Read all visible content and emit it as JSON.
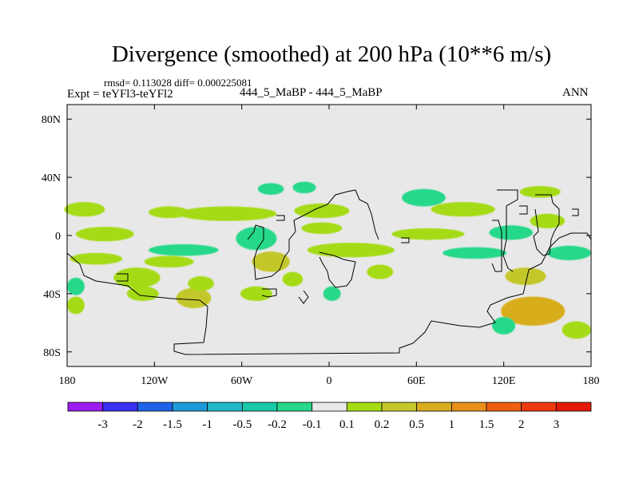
{
  "figure": {
    "title": "Divergence (smoothed) at 200 hPa (10**6 m/s)",
    "stats": "rmsd= 0.113028 diff= 0.000225081",
    "expt": "Expt = teYFl3-teYFl2",
    "runs": "444_5_MaBP - 444_5_MaBP",
    "season": "ANN"
  },
  "chart_data": {
    "type": "heatmap",
    "title": "Divergence (smoothed) at 200 hPa (10**6 m/s)",
    "xlabel": "",
    "ylabel": "",
    "xlim": [
      -180,
      180
    ],
    "ylim": [
      -90,
      90
    ],
    "grid": false,
    "x_ticks": [
      {
        "value": -180,
        "label": "180"
      },
      {
        "value": -120,
        "label": "120W"
      },
      {
        "value": -60,
        "label": "60W"
      },
      {
        "value": 0,
        "label": "0"
      },
      {
        "value": 60,
        "label": "60E"
      },
      {
        "value": 120,
        "label": "120E"
      },
      {
        "value": 180,
        "label": "180"
      }
    ],
    "y_ticks": [
      {
        "value": 80,
        "label": "80N"
      },
      {
        "value": 40,
        "label": "40N"
      },
      {
        "value": 0,
        "label": "0"
      },
      {
        "value": -40,
        "label": "40S"
      },
      {
        "value": -80,
        "label": "80S"
      }
    ],
    "colorbar": {
      "labels": [
        "-3",
        "-2",
        "-1.5",
        "-1",
        "-0.5",
        "-0.2",
        "-0.1",
        "0.1",
        "0.2",
        "0.5",
        "1",
        "1.5",
        "2",
        "3"
      ],
      "colors": [
        "#9b1df0",
        "#3a2ff0",
        "#1f63e8",
        "#1f9ad8",
        "#22b8c8",
        "#19c9a8",
        "#27d88a",
        "#e8e8e8",
        "#a5db12",
        "#c4c72a",
        "#d8ad1e",
        "#e8901a",
        "#ee5f12",
        "#ec3a0e",
        "#e41a08"
      ]
    },
    "anomaly_regions": [
      {
        "lon": -168,
        "lat": 18,
        "rlon": 14,
        "rlat": 5,
        "level": "0.1 to 0.2"
      },
      {
        "lon": -154,
        "lat": 1,
        "rlon": 20,
        "rlat": 5,
        "level": "0.1 to 0.2"
      },
      {
        "lon": -160,
        "lat": -16,
        "rlon": 18,
        "rlat": 4,
        "level": "0.1 to 0.2"
      },
      {
        "lon": -132,
        "lat": -29,
        "rlon": 16,
        "rlat": 7,
        "level": "0.1 to 0.2"
      },
      {
        "lon": -174,
        "lat": -35,
        "rlon": 6,
        "rlat": 6,
        "level": "-0.2 to -0.1"
      },
      {
        "lon": -174,
        "lat": -48,
        "rlon": 6,
        "rlat": 6,
        "level": "0.1 to 0.2"
      },
      {
        "lon": -128,
        "lat": -40,
        "rlon": 11,
        "rlat": 5,
        "level": "0.1 to 0.2"
      },
      {
        "lon": -110,
        "lat": 16,
        "rlon": 14,
        "rlat": 4,
        "level": "0.1 to 0.2"
      },
      {
        "lon": -100,
        "lat": -10,
        "rlon": 24,
        "rlat": 4,
        "level": "-0.2 to -0.1"
      },
      {
        "lon": -110,
        "lat": -18,
        "rlon": 17,
        "rlat": 4,
        "level": "0.1 to 0.2"
      },
      {
        "lon": -93,
        "lat": -43,
        "rlon": 12,
        "rlat": 7,
        "level": "0.2 to 0.5"
      },
      {
        "lon": -88,
        "lat": -33,
        "rlon": 9,
        "rlat": 5,
        "level": "0.1 to 0.2"
      },
      {
        "lon": -70,
        "lat": 15,
        "rlon": 34,
        "rlat": 5,
        "level": "0.1 to 0.2"
      },
      {
        "lon": -50,
        "lat": -2,
        "rlon": 14,
        "rlat": 8,
        "level": "-0.2 to -0.1"
      },
      {
        "lon": -40,
        "lat": -18,
        "rlon": 13,
        "rlat": 7,
        "level": "0.2 to 0.5"
      },
      {
        "lon": -40,
        "lat": 32,
        "rlon": 9,
        "rlat": 4,
        "level": "-0.2 to -0.1"
      },
      {
        "lon": -17,
        "lat": 33,
        "rlon": 8,
        "rlat": 4,
        "level": "-0.2 to -0.1"
      },
      {
        "lon": -5,
        "lat": 17,
        "rlon": 19,
        "rlat": 5,
        "level": "0.1 to 0.2"
      },
      {
        "lon": -5,
        "lat": 5,
        "rlon": 14,
        "rlat": 4,
        "level": "0.1 to 0.2"
      },
      {
        "lon": 15,
        "lat": -10,
        "rlon": 30,
        "rlat": 5,
        "level": "0.1 to 0.2"
      },
      {
        "lon": -25,
        "lat": -30,
        "rlon": 7,
        "rlat": 5,
        "level": "0.1 to 0.2"
      },
      {
        "lon": -50,
        "lat": -40,
        "rlon": 11,
        "rlat": 5,
        "level": "0.1 to 0.2"
      },
      {
        "lon": 2,
        "lat": -40,
        "rlon": 6,
        "rlat": 5,
        "level": "-0.2 to -0.1"
      },
      {
        "lon": 35,
        "lat": -25,
        "rlon": 9,
        "rlat": 5,
        "level": "0.1 to 0.2"
      },
      {
        "lon": 65,
        "lat": 26,
        "rlon": 15,
        "rlat": 6,
        "level": "-0.2 to -0.1"
      },
      {
        "lon": 92,
        "lat": 18,
        "rlon": 22,
        "rlat": 5,
        "level": "0.1 to 0.2"
      },
      {
        "lon": 68,
        "lat": 1,
        "rlon": 25,
        "rlat": 4,
        "level": "0.1 to 0.2"
      },
      {
        "lon": 100,
        "lat": -12,
        "rlon": 22,
        "rlat": 4,
        "level": "-0.2 to -0.1"
      },
      {
        "lon": 125,
        "lat": 2,
        "rlon": 15,
        "rlat": 5,
        "level": "-0.2 to -0.1"
      },
      {
        "lon": 150,
        "lat": 10,
        "rlon": 12,
        "rlat": 5,
        "level": "0.1 to 0.2"
      },
      {
        "lon": 165,
        "lat": -12,
        "rlon": 15,
        "rlat": 5,
        "level": "-0.2 to -0.1"
      },
      {
        "lon": 135,
        "lat": -28,
        "rlon": 14,
        "rlat": 6,
        "level": "0.2 to 0.5"
      },
      {
        "lon": 140,
        "lat": -52,
        "rlon": 22,
        "rlat": 10,
        "level": "0.5 to 1"
      },
      {
        "lon": 120,
        "lat": -62,
        "rlon": 8,
        "rlat": 6,
        "level": "-0.2 to -0.1"
      },
      {
        "lon": 170,
        "lat": -65,
        "rlon": 10,
        "rlat": 6,
        "level": "0.1 to 0.2"
      },
      {
        "lon": 145,
        "lat": 30,
        "rlon": 14,
        "rlat": 4,
        "level": "0.1 to 0.2"
      }
    ],
    "anomaly_range": "most of the field lies between -0.1 and 0.1 (light gray); strongest positive anomaly near 145E, 52S"
  }
}
